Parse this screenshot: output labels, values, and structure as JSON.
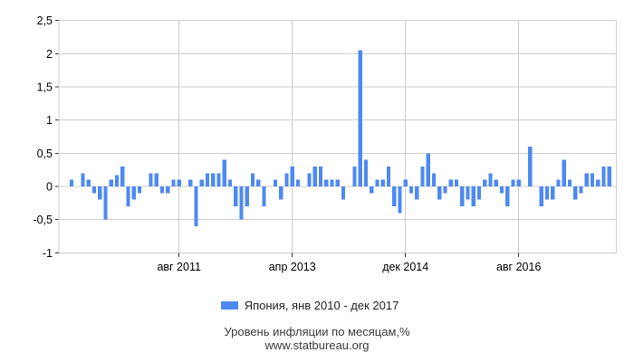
{
  "page": {
    "background": "#ffffff"
  },
  "legend": {
    "series_label": "Япония, янв 2010 - дек 2017",
    "swatch_color": "#4d89f2"
  },
  "footer": {
    "title": "Уровень инфляции по месяцам,%",
    "website": "www.statbureau.org"
  },
  "chart_data": {
    "type": "bar",
    "title": "",
    "series_name": "Япония, янв 2010 - дек 2017",
    "country": "Япония",
    "period_start": "янв 2010",
    "period_end": "дек 2017",
    "unit": "%",
    "ylabel": "",
    "xlabel": "",
    "ylim": [
      -1,
      2.5
    ],
    "grid": true,
    "legend_position": "bottom",
    "bar_color": "#4d89f2",
    "grid_color": "#cccccc",
    "tick_color": "#333333",
    "axis_label_color": "#000000",
    "y_ticks": [
      {
        "label": "2,5",
        "value": 2.5
      },
      {
        "label": "2",
        "value": 2
      },
      {
        "label": "1,5",
        "value": 1.5
      },
      {
        "label": "1",
        "value": 1
      },
      {
        "label": "0,5",
        "value": 0.5
      },
      {
        "label": "0",
        "value": 0
      },
      {
        "label": "-0,5",
        "value": -0.5
      },
      {
        "label": "-1",
        "value": -1
      }
    ],
    "x_ticks": [
      {
        "label": "авг 2011",
        "month_index": 19
      },
      {
        "label": "апр 2013",
        "month_index": 39
      },
      {
        "label": "дек 2014",
        "month_index": 59
      },
      {
        "label": "авг 2016",
        "month_index": 79
      }
    ],
    "monthly_values_by_year": {
      "2010": [
        0.1,
        0,
        0.2,
        0.1,
        -0.1,
        -0.2,
        -0.5,
        0.1,
        0.17,
        0.3,
        -0.3,
        -0.2
      ],
      "2011": [
        -0.1,
        0,
        0.2,
        0.2,
        -0.1,
        -0.1,
        0.1,
        0.1,
        0,
        0.1,
        -0.6,
        0.1
      ],
      "2012": [
        0.2,
        0.2,
        0.2,
        0.4,
        0.1,
        -0.3,
        -0.5,
        -0.3,
        0.2,
        0.1,
        -0.3,
        0
      ],
      "2013": [
        0.1,
        -0.2,
        0.2,
        0.3,
        0.1,
        0,
        0.2,
        0.3,
        0.3,
        0.1,
        0.1,
        0.1
      ],
      "2014": [
        -0.2,
        0,
        0.3,
        2.05,
        0.4,
        -0.1,
        0.1,
        0.1,
        0.3,
        -0.3,
        -0.4,
        0.1
      ],
      "2015": [
        -0.1,
        -0.2,
        0.3,
        0.5,
        0.2,
        -0.2,
        -0.1,
        0.1,
        0.1,
        -0.3,
        -0.2,
        -0.3
      ],
      "2016": [
        -0.2,
        0.1,
        0.2,
        0.1,
        -0.1,
        -0.3,
        0.1,
        0.1,
        0,
        0.6,
        0,
        -0.3
      ],
      "2017": [
        -0.2,
        -0.2,
        0.1,
        0.4,
        0.1,
        -0.2,
        -0.1,
        0.2,
        0.2,
        0.1,
        0.3,
        0.3
      ]
    }
  }
}
